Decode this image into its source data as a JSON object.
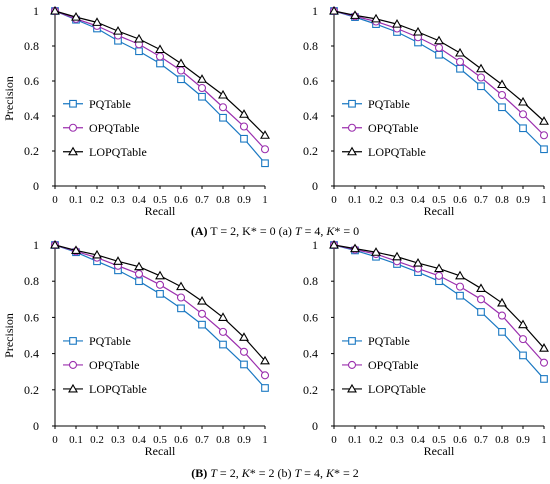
{
  "captions": {
    "top": {
      "label": "(A)",
      "text_a": "T = 2, K* = 0 (a) ",
      "t2": "T",
      "t2eq": " = 4, ",
      "k2": "K",
      "k2eq": "* = 0"
    },
    "bottom": {
      "label": "(B)",
      "t1": "T",
      "t1eq": " = 2, ",
      "k1": "K",
      "k1eq": "* = 2 (b) ",
      "t2": "T",
      "t2eq": " = 4, ",
      "k2": "K",
      "k2eq": "* = 2"
    }
  },
  "colors": {
    "PQTable": "#1a78c2",
    "OPQTable": "#9b2fae",
    "LOPQTable": "#000000"
  },
  "chart_data": [
    {
      "type": "line",
      "xlabel": "Recall",
      "ylabel": "Precision",
      "x": [
        0,
        0.1,
        0.2,
        0.3,
        0.4,
        0.5,
        0.6,
        0.7,
        0.8,
        0.9,
        1
      ],
      "xticks": [
        "0",
        "0.1",
        "0.2",
        "0.3",
        "0.4",
        "0.5",
        "0.6",
        "0.7",
        "0.8",
        "0.9",
        "1"
      ],
      "yticks": [
        "0",
        "0.2",
        "0.4",
        "0.6",
        "0.8",
        "1"
      ],
      "ylim": [
        0,
        1
      ],
      "legend": "left",
      "series": [
        {
          "name": "PQTable",
          "marker": "square",
          "values": [
            1.0,
            0.95,
            0.9,
            0.83,
            0.77,
            0.7,
            0.61,
            0.51,
            0.39,
            0.27,
            0.13
          ]
        },
        {
          "name": "OPQTable",
          "marker": "circle",
          "values": [
            1.0,
            0.955,
            0.915,
            0.86,
            0.81,
            0.74,
            0.66,
            0.56,
            0.45,
            0.34,
            0.21
          ]
        },
        {
          "name": "LOPQTable",
          "marker": "triangle",
          "values": [
            1.0,
            0.965,
            0.935,
            0.885,
            0.84,
            0.78,
            0.7,
            0.61,
            0.52,
            0.41,
            0.29
          ]
        }
      ]
    },
    {
      "type": "line",
      "xlabel": "Recall",
      "ylabel": "",
      "x": [
        0,
        0.1,
        0.2,
        0.3,
        0.4,
        0.5,
        0.6,
        0.7,
        0.8,
        0.9,
        1
      ],
      "xticks": [
        "0",
        "0.1",
        "0.2",
        "0.3",
        "0.4",
        "0.5",
        "0.6",
        "0.7",
        "0.8",
        "0.9",
        "1"
      ],
      "yticks": [
        "0",
        "0.2",
        "0.4",
        "0.6",
        "0.8",
        "1"
      ],
      "ylim": [
        0,
        1
      ],
      "legend": "left",
      "series": [
        {
          "name": "PQTable",
          "marker": "square",
          "values": [
            1.0,
            0.965,
            0.925,
            0.88,
            0.82,
            0.75,
            0.67,
            0.57,
            0.45,
            0.33,
            0.21
          ]
        },
        {
          "name": "OPQTable",
          "marker": "circle",
          "values": [
            1.0,
            0.97,
            0.94,
            0.9,
            0.85,
            0.79,
            0.71,
            0.62,
            0.52,
            0.41,
            0.29
          ]
        },
        {
          "name": "LOPQTable",
          "marker": "triangle",
          "values": [
            1.0,
            0.975,
            0.955,
            0.925,
            0.88,
            0.83,
            0.76,
            0.67,
            0.58,
            0.48,
            0.37
          ]
        }
      ]
    },
    {
      "type": "line",
      "xlabel": "Recall",
      "ylabel": "Precision",
      "x": [
        0,
        0.1,
        0.2,
        0.3,
        0.4,
        0.5,
        0.6,
        0.7,
        0.8,
        0.9,
        1
      ],
      "xticks": [
        "0",
        "0.1",
        "0.2",
        "0.3",
        "0.4",
        "0.5",
        "0.6",
        "0.7",
        "0.8",
        "0.9",
        "1"
      ],
      "yticks": [
        "0",
        "0.2",
        "0.4",
        "0.6",
        "0.8",
        "1"
      ],
      "ylim": [
        0,
        1
      ],
      "legend": "left",
      "series": [
        {
          "name": "PQTable",
          "marker": "square",
          "values": [
            1.0,
            0.96,
            0.91,
            0.86,
            0.8,
            0.73,
            0.65,
            0.56,
            0.45,
            0.34,
            0.21
          ]
        },
        {
          "name": "OPQTable",
          "marker": "circle",
          "values": [
            1.0,
            0.965,
            0.93,
            0.885,
            0.84,
            0.78,
            0.71,
            0.62,
            0.52,
            0.41,
            0.28
          ]
        },
        {
          "name": "LOPQTable",
          "marker": "triangle",
          "values": [
            1.0,
            0.97,
            0.945,
            0.91,
            0.88,
            0.83,
            0.77,
            0.69,
            0.6,
            0.49,
            0.36
          ]
        }
      ]
    },
    {
      "type": "line",
      "xlabel": "Recall",
      "ylabel": "",
      "x": [
        0,
        0.1,
        0.2,
        0.3,
        0.4,
        0.5,
        0.6,
        0.7,
        0.8,
        0.9,
        1
      ],
      "xticks": [
        "0",
        "0.1",
        "0.2",
        "0.3",
        "0.4",
        "0.5",
        "0.6",
        "0.7",
        "0.8",
        "0.9",
        "1"
      ],
      "yticks": [
        "0",
        "0.2",
        "0.4",
        "0.6",
        "0.8",
        "1"
      ],
      "ylim": [
        0,
        1
      ],
      "legend": "left",
      "series": [
        {
          "name": "PQTable",
          "marker": "square",
          "values": [
            1.0,
            0.97,
            0.935,
            0.895,
            0.85,
            0.8,
            0.72,
            0.63,
            0.52,
            0.39,
            0.26
          ]
        },
        {
          "name": "OPQTable",
          "marker": "circle",
          "values": [
            1.0,
            0.975,
            0.95,
            0.91,
            0.87,
            0.83,
            0.77,
            0.7,
            0.61,
            0.48,
            0.35
          ]
        },
        {
          "name": "LOPQTable",
          "marker": "triangle",
          "values": [
            1.0,
            0.98,
            0.96,
            0.935,
            0.9,
            0.87,
            0.83,
            0.76,
            0.68,
            0.56,
            0.43
          ]
        }
      ]
    }
  ]
}
